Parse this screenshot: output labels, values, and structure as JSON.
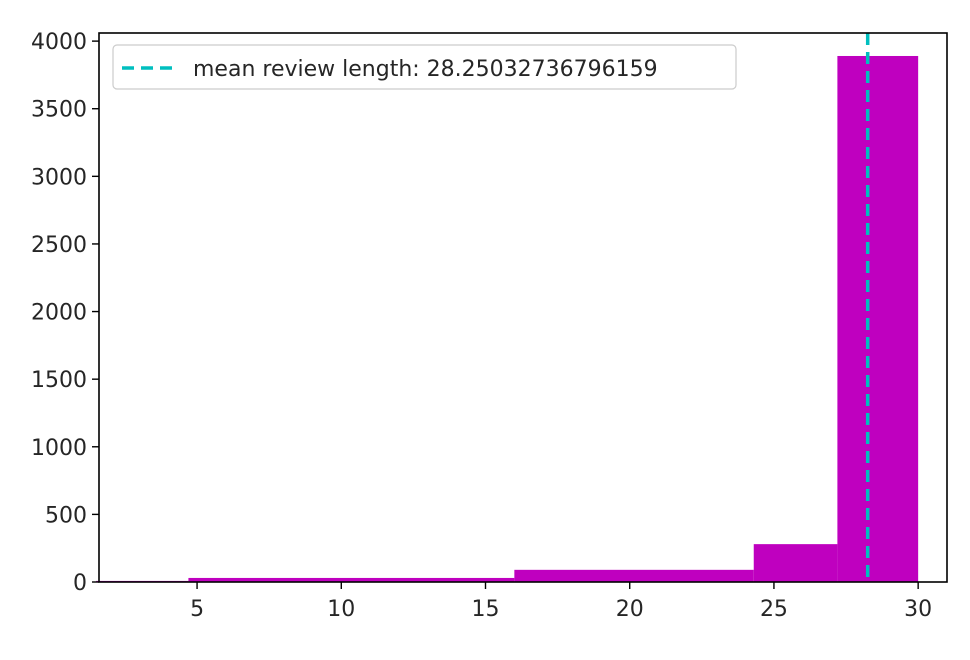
{
  "chart_data": {
    "type": "bar",
    "subtype": "histogram",
    "title": "",
    "xlabel": "",
    "ylabel": "",
    "xlim": [
      1.6,
      31.0
    ],
    "ylim": [
      0,
      4060
    ],
    "xticks": [
      5,
      10,
      15,
      20,
      25,
      30
    ],
    "yticks": [
      0,
      500,
      1000,
      1500,
      2000,
      2500,
      3000,
      3500,
      4000
    ],
    "bins": [
      {
        "start": 1.5,
        "end": 4.7,
        "count": 8
      },
      {
        "start": 4.7,
        "end": 16.0,
        "count": 30
      },
      {
        "start": 16.0,
        "end": 24.3,
        "count": 90
      },
      {
        "start": 24.3,
        "end": 27.2,
        "count": 280
      },
      {
        "start": 27.2,
        "end": 30.0,
        "count": 3890
      }
    ],
    "bar_color": "#bf00bf",
    "mean_line": {
      "value": 28.25032736796159,
      "color": "#00bfbf",
      "style": "dashed"
    },
    "legend": {
      "position": "upper-left",
      "label": "mean review length: 28.25032736796159"
    },
    "grid": false
  }
}
